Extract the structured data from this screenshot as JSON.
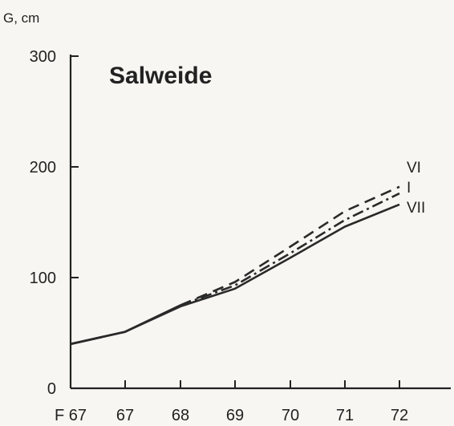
{
  "chart_data": {
    "type": "line",
    "title": "Salweide",
    "ylabel": "G, cm",
    "xlabel": "",
    "ylim": [
      0,
      300
    ],
    "yticks": [
      0,
      100,
      200,
      300
    ],
    "categories": [
      "F 67",
      "67",
      "68",
      "69",
      "70",
      "71",
      "72"
    ],
    "series": [
      {
        "name": "VI",
        "dash": "dashed",
        "values": [
          40,
          51,
          75,
          96,
          128,
          160,
          182
        ]
      },
      {
        "name": "I",
        "dash": "dash-dot",
        "values": [
          40,
          51,
          75,
          93,
          122,
          152,
          176
        ]
      },
      {
        "name": "VII",
        "dash": "solid",
        "values": [
          40,
          51,
          74,
          90,
          118,
          146,
          166
        ]
      }
    ],
    "grid": false,
    "legend": "labels at line ends"
  }
}
